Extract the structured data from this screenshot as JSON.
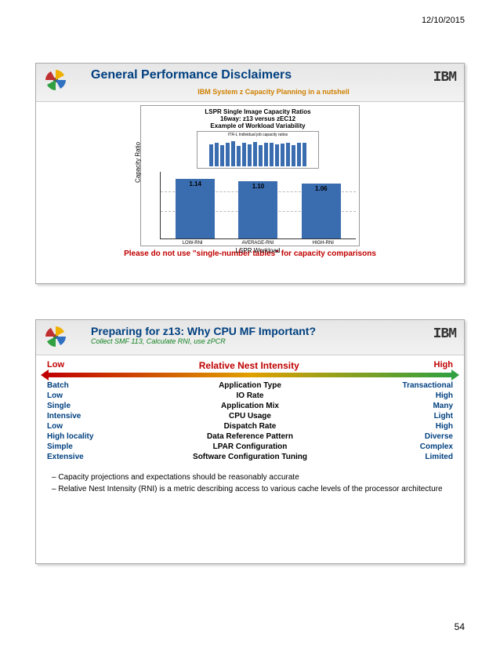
{
  "date": "12/10/2015",
  "page_number": "54",
  "slide1": {
    "title": "General Performance Disclaimers",
    "subtitle": "IBM System z Capacity Planning in a nutshell",
    "ibm_logo": "IBM",
    "chart": {
      "title_line1": "LSPR Single Image Capacity Ratios",
      "title_line2": "16way: z13 versus zEC12",
      "title_line3": "Example of Workload Variability",
      "inset_title": "ITR-L Individual job capacity ratios",
      "inset_values": [
        0.85,
        0.9,
        0.82,
        0.88,
        0.95,
        0.78,
        0.9,
        0.85,
        0.92,
        0.8,
        0.88,
        0.9,
        0.84,
        0.86,
        0.9,
        0.82,
        0.88,
        0.9
      ],
      "inset_bar_color": "#3a6db0",
      "ylabel": "Capacity Ratio",
      "xlabel": "LSPR Workload",
      "categories": [
        "LOW-RNI",
        "AVERAGE-RNI",
        "HIGH-RNI"
      ],
      "values": [
        1.14,
        1.1,
        1.06
      ],
      "value_labels": [
        "1.14",
        "1.10",
        "1.06"
      ],
      "bar_color": "#3a6db0",
      "ylim_max": 1.2
    },
    "warning": "Please do not use \"single-number tables\" for capacity comparisons"
  },
  "slide2": {
    "title": "Preparing for z13: Why CPU MF Important?",
    "subtitle": "Collect SMF 113, Calculate RNI, use zPCR",
    "ibm_logo": "IBM",
    "rni_header": {
      "low": "Low",
      "mid": "Relative Nest Intensity",
      "high": "High"
    },
    "rows": [
      {
        "l": "Batch",
        "c": "Application Type",
        "r": "Transactional"
      },
      {
        "l": "Low",
        "c": "IO Rate",
        "r": "High"
      },
      {
        "l": "Single",
        "c": "Application Mix",
        "r": "Many"
      },
      {
        "l": "Intensive",
        "c": "CPU Usage",
        "r": "Light"
      },
      {
        "l": "Low",
        "c": "Dispatch Rate",
        "r": "High"
      },
      {
        "l": "High locality",
        "c": "Data Reference Pattern",
        "r": "Diverse"
      },
      {
        "l": "Simple",
        "c": "LPAR Configuration",
        "r": "Complex"
      },
      {
        "l": "Extensive",
        "c": "Software Configuration Tuning",
        "r": "Limited"
      }
    ],
    "bullets": [
      "– Capacity projections and expectations should be reasonably accurate",
      "– Relative Nest Intensity (RNI) is a metric describing access to various cache levels of the processor architecture"
    ]
  }
}
